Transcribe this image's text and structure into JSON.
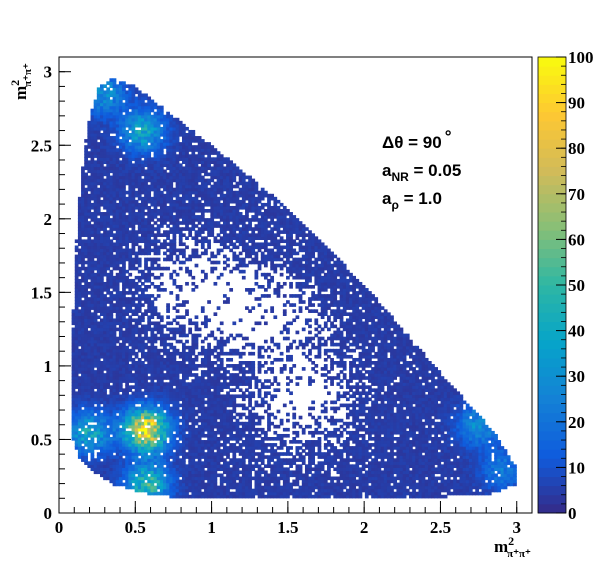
{
  "chart_data": {
    "type": "heatmap",
    "title": "",
    "xlabel": {
      "base": "m",
      "sup": "2",
      "sub": "π⁺π⁺"
    },
    "ylabel": {
      "base": "m",
      "sup": "2",
      "sub": "π⁺π⁺"
    },
    "xlim": [
      0,
      3.1
    ],
    "ylim": [
      0,
      3.1
    ],
    "x_ticks": [
      0,
      0.5,
      1,
      1.5,
      2,
      2.5,
      3
    ],
    "x_tick_labels": [
      "0",
      "0.5",
      "1",
      "1.5",
      "2",
      "2.5",
      "3"
    ],
    "y_ticks": [
      0,
      0.5,
      1,
      1.5,
      2,
      2.5,
      3
    ],
    "y_tick_labels": [
      "0",
      "0.5",
      "1",
      "1.5",
      "2",
      "2.5",
      "3"
    ],
    "z_range": [
      0,
      100
    ],
    "colorbar_ticks": [
      0,
      10,
      20,
      30,
      40,
      50,
      60,
      70,
      80,
      90,
      100
    ],
    "colorbar_tick_labels": [
      "0",
      "10",
      "20",
      "30",
      "40",
      "50",
      "60",
      "70",
      "80",
      "90",
      "100"
    ],
    "bins": 150,
    "grid": false,
    "colormap": [
      "#352a87",
      "#0f5cdd",
      "#1481d6",
      "#06a4ca",
      "#2eb7a4",
      "#87bf77",
      "#d1bb59",
      "#fec832",
      "#f9fb0e"
    ],
    "dalitz_region": {
      "description_boundary_points": [
        [
          0.08,
          0.55
        ],
        [
          0.08,
          1.1
        ],
        [
          0.12,
          2.0
        ],
        [
          0.18,
          2.6
        ],
        [
          0.26,
          2.9
        ],
        [
          0.35,
          2.95
        ],
        [
          0.5,
          2.9
        ],
        [
          1.0,
          2.5
        ],
        [
          1.5,
          2.07
        ],
        [
          2.0,
          1.55
        ],
        [
          2.5,
          0.95
        ],
        [
          2.85,
          0.55
        ],
        [
          3.0,
          0.3
        ],
        [
          3.0,
          0.2
        ],
        [
          2.8,
          0.12
        ],
        [
          2.0,
          0.1
        ],
        [
          1.0,
          0.1
        ],
        [
          0.6,
          0.12
        ],
        [
          0.35,
          0.2
        ],
        [
          0.2,
          0.3
        ],
        [
          0.12,
          0.4
        ]
      ],
      "hotspots": [
        {
          "x": 0.57,
          "y": 0.57,
          "value": 85
        },
        {
          "x": 0.58,
          "y": 0.2,
          "value": 45
        },
        {
          "x": 0.2,
          "y": 0.55,
          "value": 35
        },
        {
          "x": 0.55,
          "y": 2.6,
          "value": 35
        },
        {
          "x": 0.3,
          "y": 2.85,
          "value": 25
        },
        {
          "x": 2.75,
          "y": 0.6,
          "value": 25
        },
        {
          "x": 2.9,
          "y": 0.3,
          "value": 18
        }
      ],
      "depleted_regions": [
        {
          "x": 1.35,
          "y": 1.35,
          "value": 0
        },
        {
          "x": 0.9,
          "y": 1.55,
          "value": 0
        },
        {
          "x": 1.6,
          "y": 0.75,
          "value": 0
        }
      ]
    },
    "annotations": [
      {
        "id": "dtheta",
        "text_parts": [
          "Δθ = 90",
          "°"
        ]
      },
      {
        "id": "anr",
        "base": "a",
        "sub": "NR",
        "rest": " = 0.05"
      },
      {
        "id": "arho",
        "base": "a",
        "sub": "ρ",
        "rest": " = 1.0"
      }
    ]
  }
}
